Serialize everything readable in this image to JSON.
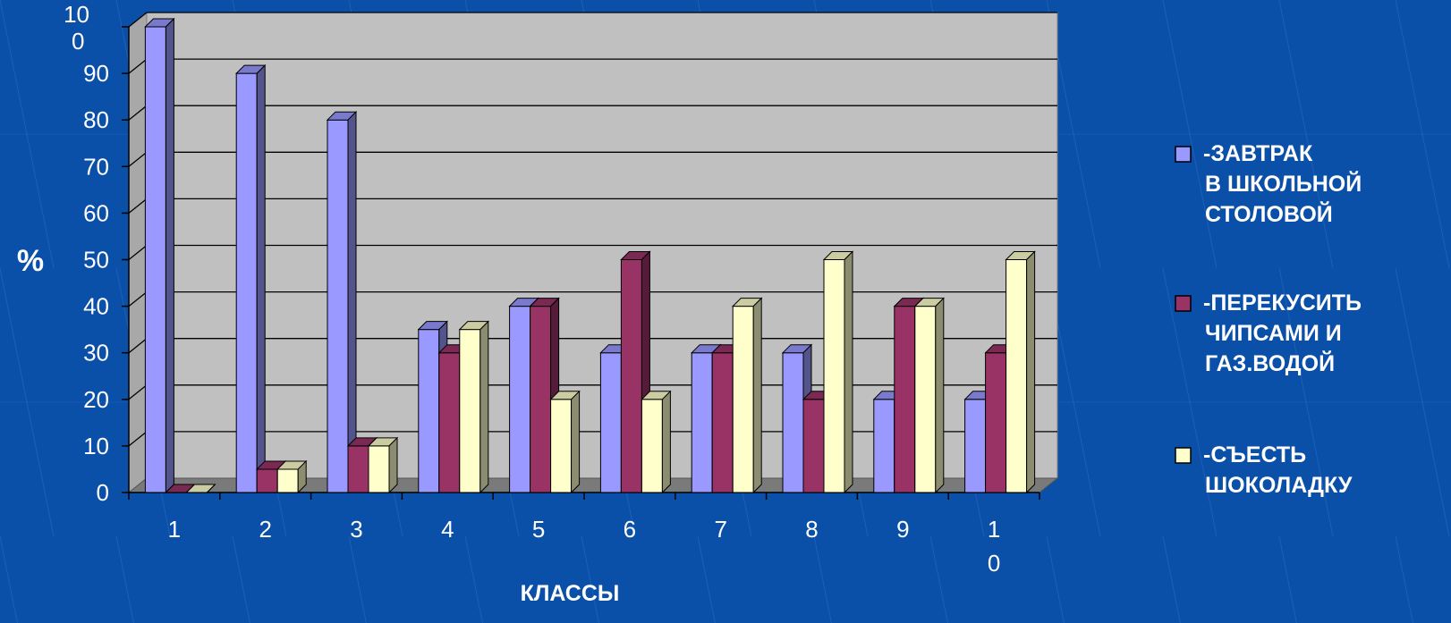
{
  "colors": {
    "background": "#0a4fa8",
    "plot_area": "#c0c0c0",
    "grid": "#000000",
    "text": "#ffffff",
    "series": [
      "#9999ff",
      "#993366",
      "#ffffcc"
    ]
  },
  "chart_data": {
    "type": "bar",
    "subtype": "3d-clustered",
    "title": "",
    "xlabel": "КЛАССЫ",
    "ylabel": "%",
    "ylim": [
      0,
      100
    ],
    "yticks": [
      0,
      10,
      20,
      30,
      40,
      50,
      60,
      70,
      80,
      90,
      100
    ],
    "ytick_labels": [
      "0",
      "10",
      "20",
      "30",
      "40",
      "50",
      "60",
      "70",
      "80",
      "90",
      "10\n0"
    ],
    "categories": [
      "1",
      "2",
      "3",
      "4",
      "5",
      "6",
      "7",
      "8",
      "9",
      "1\n0"
    ],
    "series": [
      {
        "name": "-ЗАВТРАК\nВ ШКОЛЬНОЙ\nСТОЛОВОЙ",
        "values": [
          100,
          90,
          80,
          35,
          40,
          30,
          30,
          30,
          20,
          20
        ]
      },
      {
        "name": "-ПЕРЕКУСИТЬ\nЧИПСАМИ И\nГАЗ.ВОДОЙ",
        "values": [
          0,
          5,
          10,
          30,
          40,
          50,
          30,
          20,
          40,
          30
        ]
      },
      {
        "name": "-СЪЕСТЬ\nШОКОЛАДКУ",
        "values": [
          0,
          5,
          10,
          35,
          20,
          20,
          40,
          50,
          40,
          50
        ]
      }
    ],
    "grid": true,
    "legend_position": "right"
  }
}
